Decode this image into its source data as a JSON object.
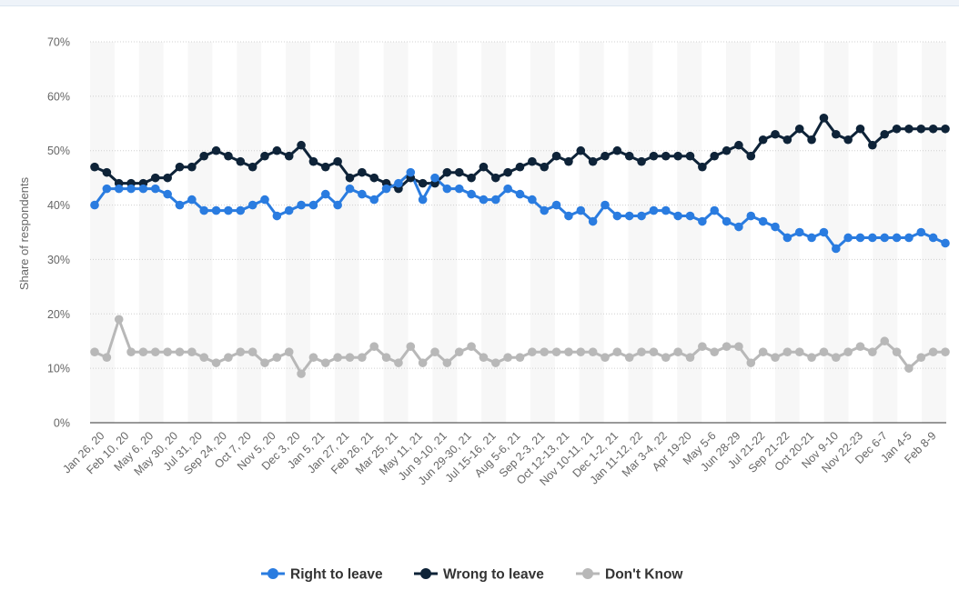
{
  "chart_data": {
    "type": "line",
    "ylabel": "Share of respondents",
    "ylim": [
      0,
      70
    ],
    "yticks": [
      "0%",
      "10%",
      "20%",
      "30%",
      "40%",
      "50%",
      "60%",
      "70%"
    ],
    "grid": true,
    "legend_position": "bottom-center",
    "x_tick_labels": [
      "Jan 26, 20",
      "Feb 10, 20",
      "May 6, 20",
      "May 30, 20",
      "Jul 31, 20",
      "Sep 24, 20",
      "Oct 7, 20",
      "Nov 5, 20",
      "Dec 3, 20",
      "Jan 5, 21",
      "Jan 27, 21",
      "Feb 26, 21",
      "Mar 25, 21",
      "May 11, 21",
      "Jun 9-10, 21",
      "Jun 29-30, 21",
      "Jul 15-16, 21",
      "Aug 5-6, 21",
      "Sep 2-3, 21",
      "Oct 12-13, 21",
      "Nov 10-11, 21",
      "Dec 1-2, 21",
      "Jan 11-12, 22",
      "Mar 3-4, 22",
      "Apr 19-20",
      "May 5-6",
      "Jun 28-29",
      "Jul 21-22",
      "Sep 21-22",
      "Oct 20-21",
      "Nov 9-10",
      "Nov 22-23",
      "Dec 6-7",
      "Jan 4-5",
      "Feb 8-9"
    ],
    "series": [
      {
        "name": "Right to leave",
        "color": "#2a7ce0",
        "values": [
          40,
          43,
          43,
          43,
          43,
          43,
          42,
          40,
          41,
          39,
          39,
          39,
          39,
          40,
          41,
          38,
          39,
          40,
          40,
          42,
          40,
          43,
          42,
          41,
          43,
          44,
          46,
          41,
          45,
          43,
          43,
          42,
          41,
          41,
          43,
          42,
          41,
          39,
          40,
          38,
          39,
          37,
          40,
          38,
          38,
          38,
          39,
          39,
          38,
          38,
          37,
          39,
          37,
          36,
          38,
          37,
          36,
          34,
          35,
          34,
          35,
          32,
          34,
          34,
          34,
          34,
          34,
          34,
          35,
          34,
          33
        ]
      },
      {
        "name": "Wrong to leave",
        "color": "#0e2338",
        "values": [
          47,
          46,
          44,
          44,
          44,
          45,
          45,
          47,
          47,
          49,
          50,
          49,
          48,
          47,
          49,
          50,
          49,
          51,
          48,
          47,
          48,
          45,
          46,
          45,
          44,
          43,
          45,
          44,
          44,
          46,
          46,
          45,
          47,
          45,
          46,
          47,
          48,
          47,
          49,
          48,
          50,
          48,
          49,
          50,
          49,
          48,
          49,
          49,
          49,
          49,
          47,
          49,
          50,
          51,
          49,
          52,
          53,
          52,
          54,
          52,
          56,
          53,
          52,
          54,
          51,
          53,
          54,
          54,
          54,
          54,
          54
        ]
      },
      {
        "name": "Don't Know",
        "color": "#b8b8b8",
        "values": [
          13,
          12,
          19,
          13,
          13,
          13,
          13,
          13,
          13,
          12,
          11,
          12,
          13,
          13,
          11,
          12,
          13,
          9,
          12,
          11,
          12,
          12,
          12,
          14,
          12,
          11,
          14,
          11,
          13,
          11,
          13,
          14,
          12,
          11,
          12,
          12,
          13,
          13,
          13,
          13,
          13,
          13,
          12,
          13,
          12,
          13,
          13,
          12,
          13,
          12,
          14,
          13,
          14,
          14,
          11,
          13,
          12,
          13,
          13,
          12,
          13,
          12,
          13,
          14,
          13,
          15,
          13,
          10,
          12,
          13,
          13
        ]
      }
    ]
  }
}
